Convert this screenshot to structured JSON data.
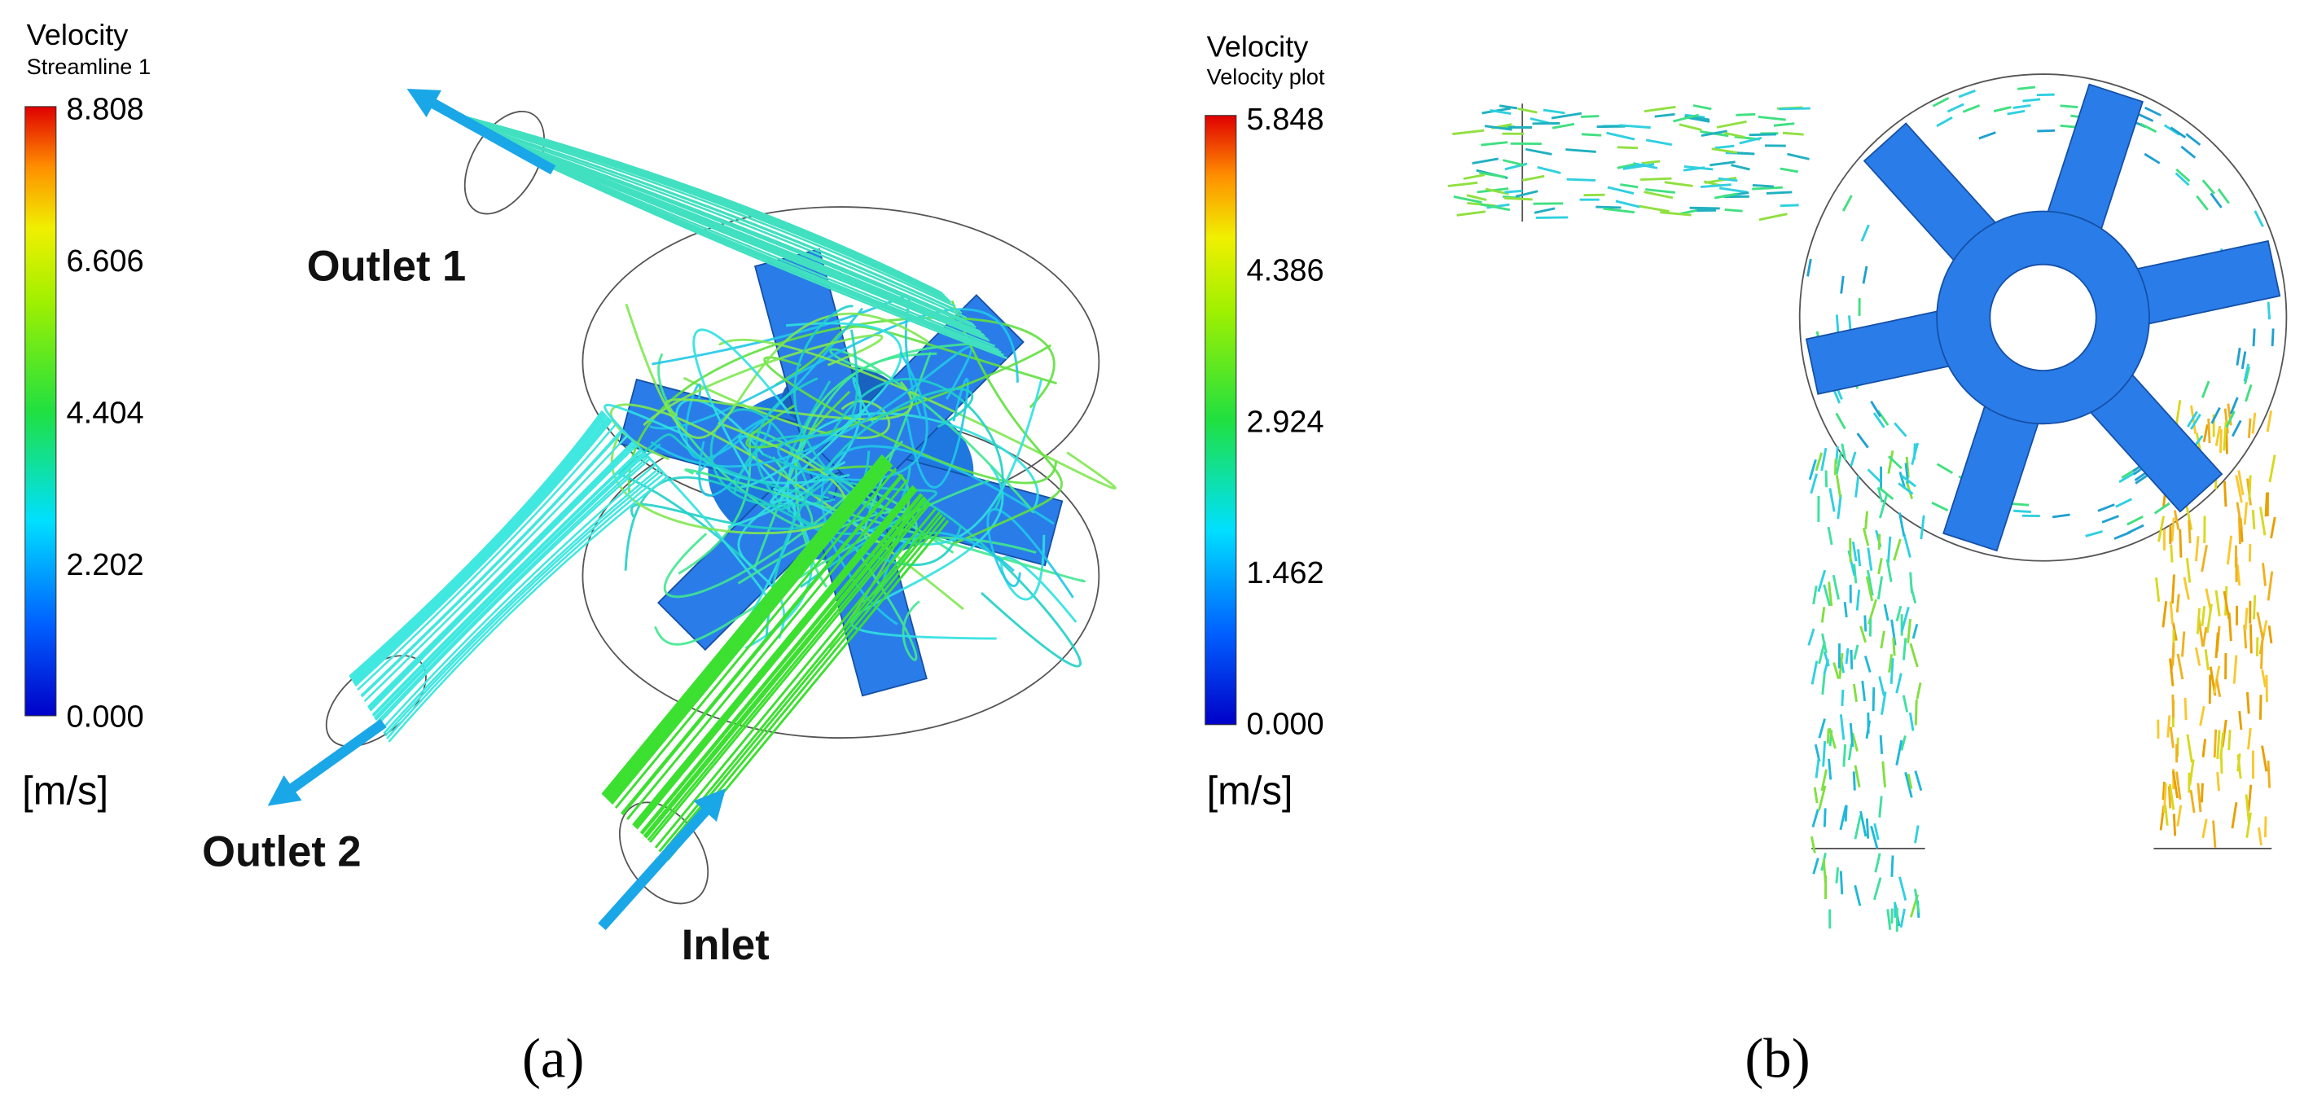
{
  "panel_a": {
    "legend": {
      "title": "Velocity",
      "subtitle": "Streamline 1",
      "ticks": [
        "8.808",
        "6.606",
        "4.404",
        "2.202",
        "0.000"
      ],
      "unit": "[m/s]"
    },
    "labels": {
      "outlet1": "Outlet 1",
      "outlet2": "Outlet 2",
      "inlet": "Inlet"
    },
    "caption": "(a)"
  },
  "panel_b": {
    "legend": {
      "title": "Velocity",
      "subtitle": "Velocity plot",
      "ticks": [
        "5.848",
        "4.386",
        "2.924",
        "1.462",
        "0.000"
      ],
      "unit": "[m/s]"
    },
    "caption": "(b)"
  }
}
